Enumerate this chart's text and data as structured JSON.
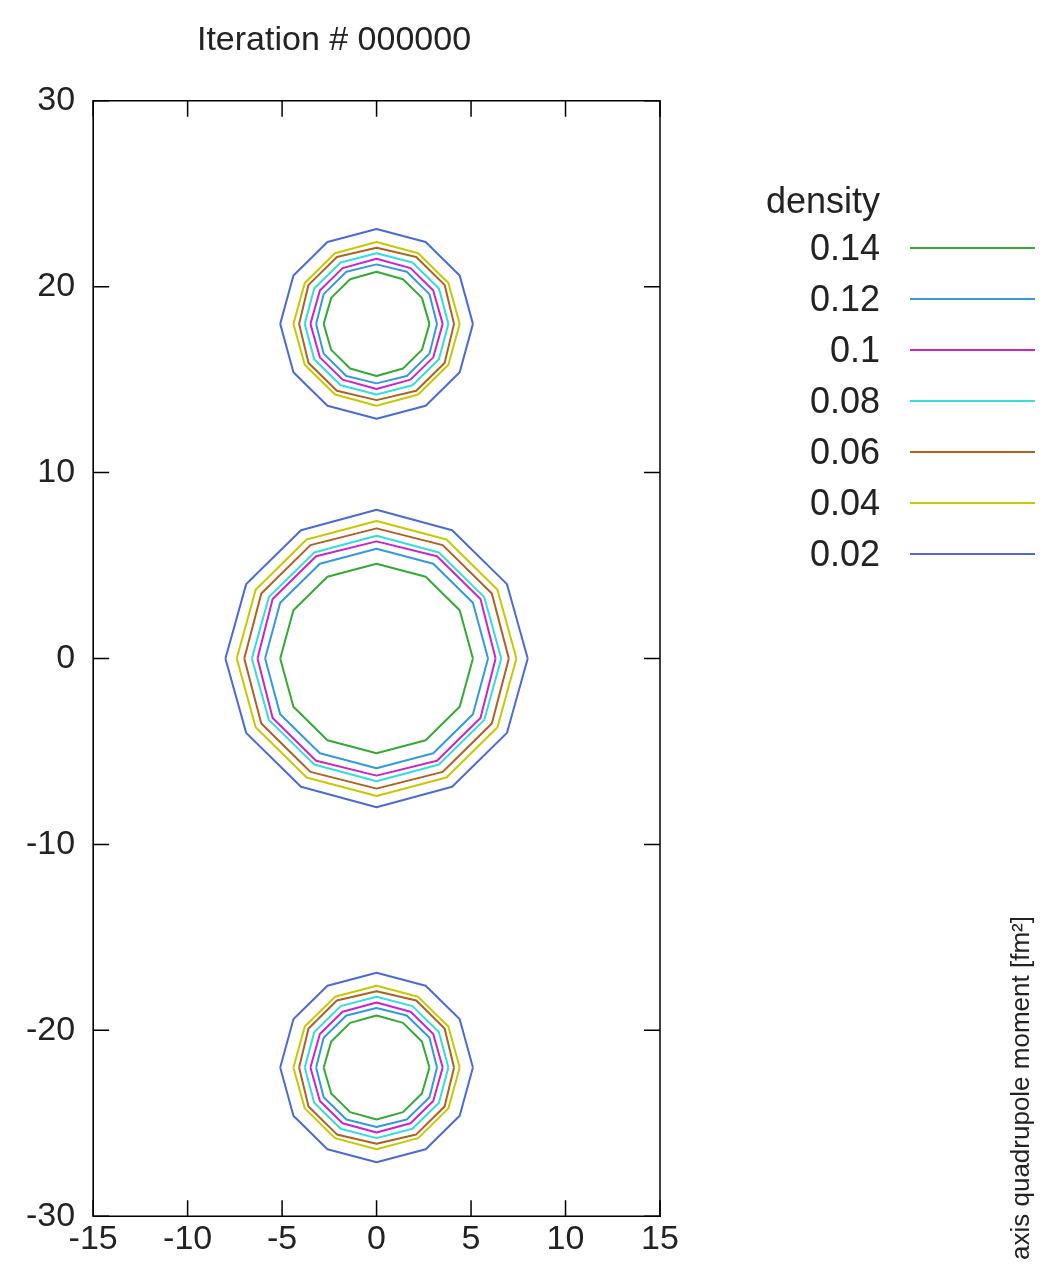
{
  "chart_data": {
    "type": "line",
    "title": "Iteration # 000000",
    "legend_title": "density",
    "legend": "right",
    "grid": false,
    "marker": "none",
    "line_style": "solid",
    "xlim": [
      -15,
      15
    ],
    "xticks": [
      -15,
      -10,
      -5,
      0,
      5,
      10,
      15
    ],
    "ylim": [
      -30,
      30
    ],
    "yticks": [
      -30,
      -20,
      -10,
      0,
      10,
      20,
      30
    ],
    "annotations": [
      "axis quadrupole moment [fm²]"
    ],
    "series": [
      {
        "name": "0.14",
        "color": "#33aa33",
        "x": [
          -2.8,
          -2.4,
          -1.4,
          0,
          1.4,
          2.4,
          2.8
        ],
        "values": [
          18,
          19.4,
          20.4,
          20.8,
          20.4,
          19.4,
          18
        ]
      },
      {
        "color": "#33aa33",
        "x": [
          -2.8,
          -2.4,
          -1.4,
          0,
          1.4,
          2.4,
          2.8
        ],
        "values": [
          18,
          16.6,
          15.6,
          15.2,
          15.6,
          16.6,
          18
        ]
      },
      {
        "color": "#33aa33",
        "x": [
          -5.1,
          -4.4,
          -2.6,
          0,
          2.6,
          4.4,
          5.1
        ],
        "values": [
          0,
          2.6,
          4.4,
          5.1,
          4.4,
          2.6,
          0
        ]
      },
      {
        "color": "#33aa33",
        "x": [
          -5.1,
          -4.4,
          -2.6,
          0,
          2.6,
          4.4,
          5.1
        ],
        "values": [
          0,
          -2.6,
          -4.4,
          -5.1,
          -4.4,
          -2.6,
          0
        ]
      },
      {
        "color": "#33aa33",
        "x": [
          -2.8,
          -2.4,
          -1.4,
          0,
          1.4,
          2.4,
          2.8
        ],
        "values": [
          -22,
          -20.6,
          -19.6,
          -19.2,
          -19.6,
          -20.6,
          -22
        ]
      },
      {
        "color": "#33aa33",
        "x": [
          -2.8,
          -2.4,
          -1.4,
          0,
          1.4,
          2.4,
          2.8
        ],
        "values": [
          -22,
          -23.4,
          -24.4,
          -24.8,
          -24.4,
          -23.4,
          -22
        ]
      },
      {
        "name": "0.12",
        "color": "#3399dd",
        "x": [
          -3.2,
          -2.8,
          -1.6,
          0,
          1.6,
          2.8,
          3.2
        ],
        "values": [
          18,
          19.6,
          20.8,
          21.2,
          20.8,
          19.6,
          18
        ]
      },
      {
        "color": "#3399dd",
        "x": [
          -3.2,
          -2.8,
          -1.6,
          0,
          1.6,
          2.8,
          3.2
        ],
        "values": [
          18,
          16.4,
          15.2,
          14.8,
          15.2,
          16.4,
          18
        ]
      },
      {
        "color": "#3399dd",
        "x": [
          -5.9,
          -5.1,
          -3,
          0,
          3,
          5.1,
          5.9
        ],
        "values": [
          0,
          3,
          5.1,
          5.9,
          5.1,
          3,
          0
        ]
      },
      {
        "color": "#3399dd",
        "x": [
          -5.9,
          -5.1,
          -3,
          0,
          3,
          5.1,
          5.9
        ],
        "values": [
          0,
          -3,
          -5.1,
          -5.9,
          -5.1,
          -3,
          0
        ]
      },
      {
        "color": "#3399dd",
        "x": [
          -3.2,
          -2.8,
          -1.6,
          0,
          1.6,
          2.8,
          3.2
        ],
        "values": [
          -22,
          -20.4,
          -19.2,
          -18.8,
          -19.2,
          -20.4,
          -22
        ]
      },
      {
        "color": "#3399dd",
        "x": [
          -3.2,
          -2.8,
          -1.6,
          0,
          1.6,
          2.8,
          3.2
        ],
        "values": [
          -22,
          -23.6,
          -24.8,
          -25.2,
          -24.8,
          -23.6,
          -22
        ]
      },
      {
        "name": "0.1",
        "color": "#cc22cc",
        "x": [
          -3.5,
          -3,
          -1.8,
          0,
          1.8,
          3,
          3.5
        ],
        "values": [
          18,
          19.8,
          21,
          21.5,
          21,
          19.8,
          18
        ]
      },
      {
        "color": "#cc22cc",
        "x": [
          -3.5,
          -3,
          -1.8,
          0,
          1.8,
          3,
          3.5
        ],
        "values": [
          18,
          16.2,
          15,
          14.5,
          15,
          16.2,
          18
        ]
      },
      {
        "color": "#cc22cc",
        "x": [
          -6.3,
          -5.5,
          -3.2,
          0,
          3.2,
          5.5,
          6.3
        ],
        "values": [
          0,
          3.2,
          5.5,
          6.3,
          5.5,
          3.2,
          0
        ]
      },
      {
        "color": "#cc22cc",
        "x": [
          -6.3,
          -5.5,
          -3.2,
          0,
          3.2,
          5.5,
          6.3
        ],
        "values": [
          0,
          -3.2,
          -5.5,
          -6.3,
          -5.5,
          -3.2,
          0
        ]
      },
      {
        "color": "#cc22cc",
        "x": [
          -3.5,
          -3,
          -1.8,
          0,
          1.8,
          3,
          3.5
        ],
        "values": [
          -22,
          -20.2,
          -19,
          -18.5,
          -19,
          -20.2,
          -22
        ]
      },
      {
        "color": "#cc22cc",
        "x": [
          -3.5,
          -3,
          -1.8,
          0,
          1.8,
          3,
          3.5
        ],
        "values": [
          -22,
          -23.8,
          -25,
          -25.5,
          -25,
          -23.8,
          -22
        ]
      },
      {
        "name": "0.08",
        "color": "#33dddd",
        "x": [
          -3.8,
          -3.3,
          -1.9,
          0,
          1.9,
          3.3,
          3.8
        ],
        "values": [
          18,
          19.9,
          21.3,
          21.8,
          21.3,
          19.9,
          18
        ]
      },
      {
        "color": "#33dddd",
        "x": [
          -3.8,
          -3.3,
          -1.9,
          0,
          1.9,
          3.3,
          3.8
        ],
        "values": [
          18,
          16.1,
          14.7,
          14.2,
          14.7,
          16.1,
          18
        ]
      },
      {
        "color": "#33dddd",
        "x": [
          -6.6,
          -5.7,
          -3.3,
          0,
          3.3,
          5.7,
          6.6
        ],
        "values": [
          0,
          3.3,
          5.7,
          6.6,
          5.7,
          3.3,
          0
        ]
      },
      {
        "color": "#33dddd",
        "x": [
          -6.6,
          -5.7,
          -3.3,
          0,
          3.3,
          5.7,
          6.6
        ],
        "values": [
          0,
          -3.3,
          -5.7,
          -6.6,
          -5.7,
          -3.3,
          0
        ]
      },
      {
        "color": "#33dddd",
        "x": [
          -3.8,
          -3.3,
          -1.9,
          0,
          1.9,
          3.3,
          3.8
        ],
        "values": [
          -22,
          -20.1,
          -18.7,
          -18.2,
          -18.7,
          -20.1,
          -22
        ]
      },
      {
        "color": "#33dddd",
        "x": [
          -3.8,
          -3.3,
          -1.9,
          0,
          1.9,
          3.3,
          3.8
        ],
        "values": [
          -22,
          -23.9,
          -25.3,
          -25.8,
          -25.3,
          -23.9,
          -22
        ]
      },
      {
        "name": "0.06",
        "color": "#b06020",
        "x": [
          -4.1,
          -3.6,
          -2.1,
          0,
          2.1,
          3.6,
          4.1
        ],
        "values": [
          18,
          20.1,
          21.6,
          22.1,
          21.6,
          20.1,
          18
        ]
      },
      {
        "color": "#b06020",
        "x": [
          -4.1,
          -3.6,
          -2.1,
          0,
          2.1,
          3.6,
          4.1
        ],
        "values": [
          18,
          15.9,
          14.4,
          13.9,
          14.4,
          15.9,
          18
        ]
      },
      {
        "color": "#b06020",
        "x": [
          -7,
          -6.1,
          -3.5,
          0,
          3.5,
          6.1,
          7
        ],
        "values": [
          0,
          3.5,
          6.1,
          7,
          6.1,
          3.5,
          0
        ]
      },
      {
        "color": "#b06020",
        "x": [
          -7,
          -6.1,
          -3.5,
          0,
          3.5,
          6.1,
          7
        ],
        "values": [
          0,
          -3.5,
          -6.1,
          -7,
          -6.1,
          -3.5,
          0
        ]
      },
      {
        "color": "#b06020",
        "x": [
          -4.1,
          -3.6,
          -2.1,
          0,
          2.1,
          3.6,
          4.1
        ],
        "values": [
          -22,
          -19.9,
          -18.4,
          -17.9,
          -18.4,
          -19.9,
          -22
        ]
      },
      {
        "color": "#b06020",
        "x": [
          -4.1,
          -3.6,
          -2.1,
          0,
          2.1,
          3.6,
          4.1
        ],
        "values": [
          -22,
          -24.1,
          -25.6,
          -26.1,
          -25.6,
          -24.1,
          -22
        ]
      },
      {
        "name": "0.04",
        "color": "#c8c800",
        "x": [
          -4.4,
          -3.8,
          -2.2,
          0,
          2.2,
          3.8,
          4.4
        ],
        "values": [
          18,
          20.2,
          21.8,
          22.4,
          21.8,
          20.2,
          18
        ]
      },
      {
        "color": "#c8c800",
        "x": [
          -4.4,
          -3.8,
          -2.2,
          0,
          2.2,
          3.8,
          4.4
        ],
        "values": [
          18,
          15.8,
          14.2,
          13.6,
          14.2,
          15.8,
          18
        ]
      },
      {
        "color": "#c8c800",
        "x": [
          -7.4,
          -6.4,
          -3.7,
          0,
          3.7,
          6.4,
          7.4
        ],
        "values": [
          0,
          3.7,
          6.4,
          7.4,
          6.4,
          3.7,
          0
        ]
      },
      {
        "color": "#c8c800",
        "x": [
          -7.4,
          -6.4,
          -3.7,
          0,
          3.7,
          6.4,
          7.4
        ],
        "values": [
          0,
          -3.7,
          -6.4,
          -7.4,
          -6.4,
          -3.7,
          0
        ]
      },
      {
        "color": "#c8c800",
        "x": [
          -4.4,
          -3.8,
          -2.2,
          0,
          2.2,
          3.8,
          4.4
        ],
        "values": [
          -22,
          -19.8,
          -18.2,
          -17.6,
          -18.2,
          -19.8,
          -22
        ]
      },
      {
        "color": "#c8c800",
        "x": [
          -4.4,
          -3.8,
          -2.2,
          0,
          2.2,
          3.8,
          4.4
        ],
        "values": [
          -22,
          -24.2,
          -25.8,
          -26.4,
          -25.8,
          -24.2,
          -22
        ]
      },
      {
        "name": "0.02",
        "color": "#4a6ad8",
        "x": [
          -5.1,
          -4.4,
          -2.6,
          0,
          2.6,
          4.4,
          5.1
        ],
        "values": [
          18,
          20.6,
          22.4,
          23.1,
          22.4,
          20.6,
          18
        ]
      },
      {
        "color": "#4a6ad8",
        "x": [
          -5.1,
          -4.4,
          -2.6,
          0,
          2.6,
          4.4,
          5.1
        ],
        "values": [
          18,
          15.4,
          13.6,
          12.9,
          13.6,
          15.4,
          18
        ]
      },
      {
        "color": "#4a6ad8",
        "x": [
          -8,
          -6.9,
          -4,
          0,
          4,
          6.9,
          8
        ],
        "values": [
          0,
          4,
          6.9,
          8,
          6.9,
          4,
          0
        ]
      },
      {
        "color": "#4a6ad8",
        "x": [
          -8,
          -6.9,
          -4,
          0,
          4,
          6.9,
          8
        ],
        "values": [
          0,
          -4,
          -6.9,
          -8,
          -6.9,
          -4,
          0
        ]
      },
      {
        "color": "#4a6ad8",
        "x": [
          -5.1,
          -4.4,
          -2.6,
          0,
          2.6,
          4.4,
          5.1
        ],
        "values": [
          -22,
          -19.4,
          -17.6,
          -16.9,
          -17.6,
          -19.4,
          -22
        ]
      },
      {
        "color": "#4a6ad8",
        "x": [
          -5.1,
          -4.4,
          -2.6,
          0,
          2.6,
          4.4,
          5.1
        ],
        "values": [
          -22,
          -24.6,
          -26.4,
          -27.1,
          -26.4,
          -24.6,
          -22
        ]
      }
    ]
  }
}
